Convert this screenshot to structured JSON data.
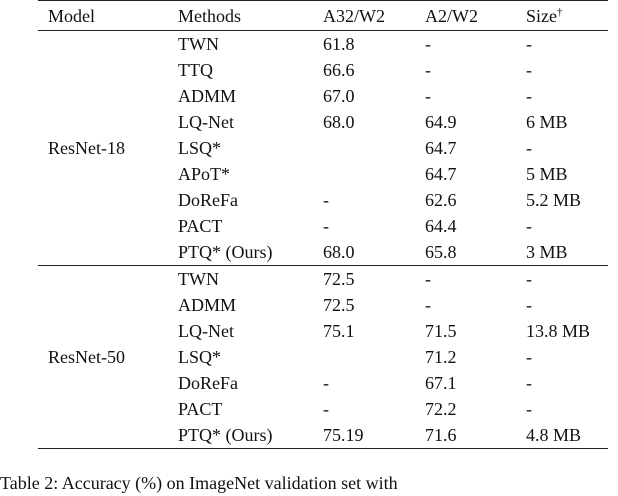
{
  "table": {
    "headers": {
      "model": "Model",
      "methods": "Methods",
      "a32w2": "A32/W2",
      "a2w2": "A2/W2",
      "size": "Size",
      "size_mark": "†"
    },
    "groups": [
      {
        "model": "ResNet-18",
        "rows": [
          {
            "method": "TWN",
            "a32w2": "61.8",
            "a2w2": "-",
            "size": "-"
          },
          {
            "method": "TTQ",
            "a32w2": "66.6",
            "a2w2": "-",
            "size": "-"
          },
          {
            "method": "ADMM",
            "a32w2": "67.0",
            "a2w2": "-",
            "size": "-"
          },
          {
            "method": "LQ-Net",
            "a32w2": "68.0",
            "a2w2": "64.9",
            "size": "6 MB"
          },
          {
            "method": "LSQ*",
            "a32w2": "",
            "a2w2": "64.7",
            "size": "-"
          },
          {
            "method": "APoT*",
            "a32w2": "",
            "a2w2": "64.7",
            "size": "5 MB"
          },
          {
            "method": "DoReFa",
            "a32w2": "-",
            "a2w2": "62.6",
            "size": "5.2 MB"
          },
          {
            "method": "PACT",
            "a32w2": "-",
            "a2w2": "64.4",
            "size": "-"
          },
          {
            "method": "PTQ* (Ours)",
            "a32w2": "68.0",
            "a2w2": "65.8",
            "size": "3 MB",
            "bold": true
          }
        ]
      },
      {
        "model": "ResNet-50",
        "rows": [
          {
            "method": "TWN",
            "a32w2": "72.5",
            "a2w2": "-",
            "size": "-"
          },
          {
            "method": "ADMM",
            "a32w2": "72.5",
            "a2w2": "-",
            "size": "-"
          },
          {
            "method": "LQ-Net",
            "a32w2": "75.1",
            "a2w2": "71.5",
            "size": "13.8 MB"
          },
          {
            "method": "LSQ*",
            "a32w2": "",
            "a2w2": "71.2",
            "size": "-"
          },
          {
            "method": "DoReFa",
            "a32w2": "-",
            "a2w2": "67.1",
            "size": "-"
          },
          {
            "method": "PACT",
            "a32w2": "-",
            "a2w2": "72.2",
            "size": "-"
          },
          {
            "method": "PTQ* (Ours)",
            "a32w2": "75.19",
            "a2w2": "71.6",
            "size": "4.8 MB",
            "bold": true
          }
        ]
      }
    ]
  },
  "caption": "Table 2: Accuracy (%) on ImageNet validation set with"
}
